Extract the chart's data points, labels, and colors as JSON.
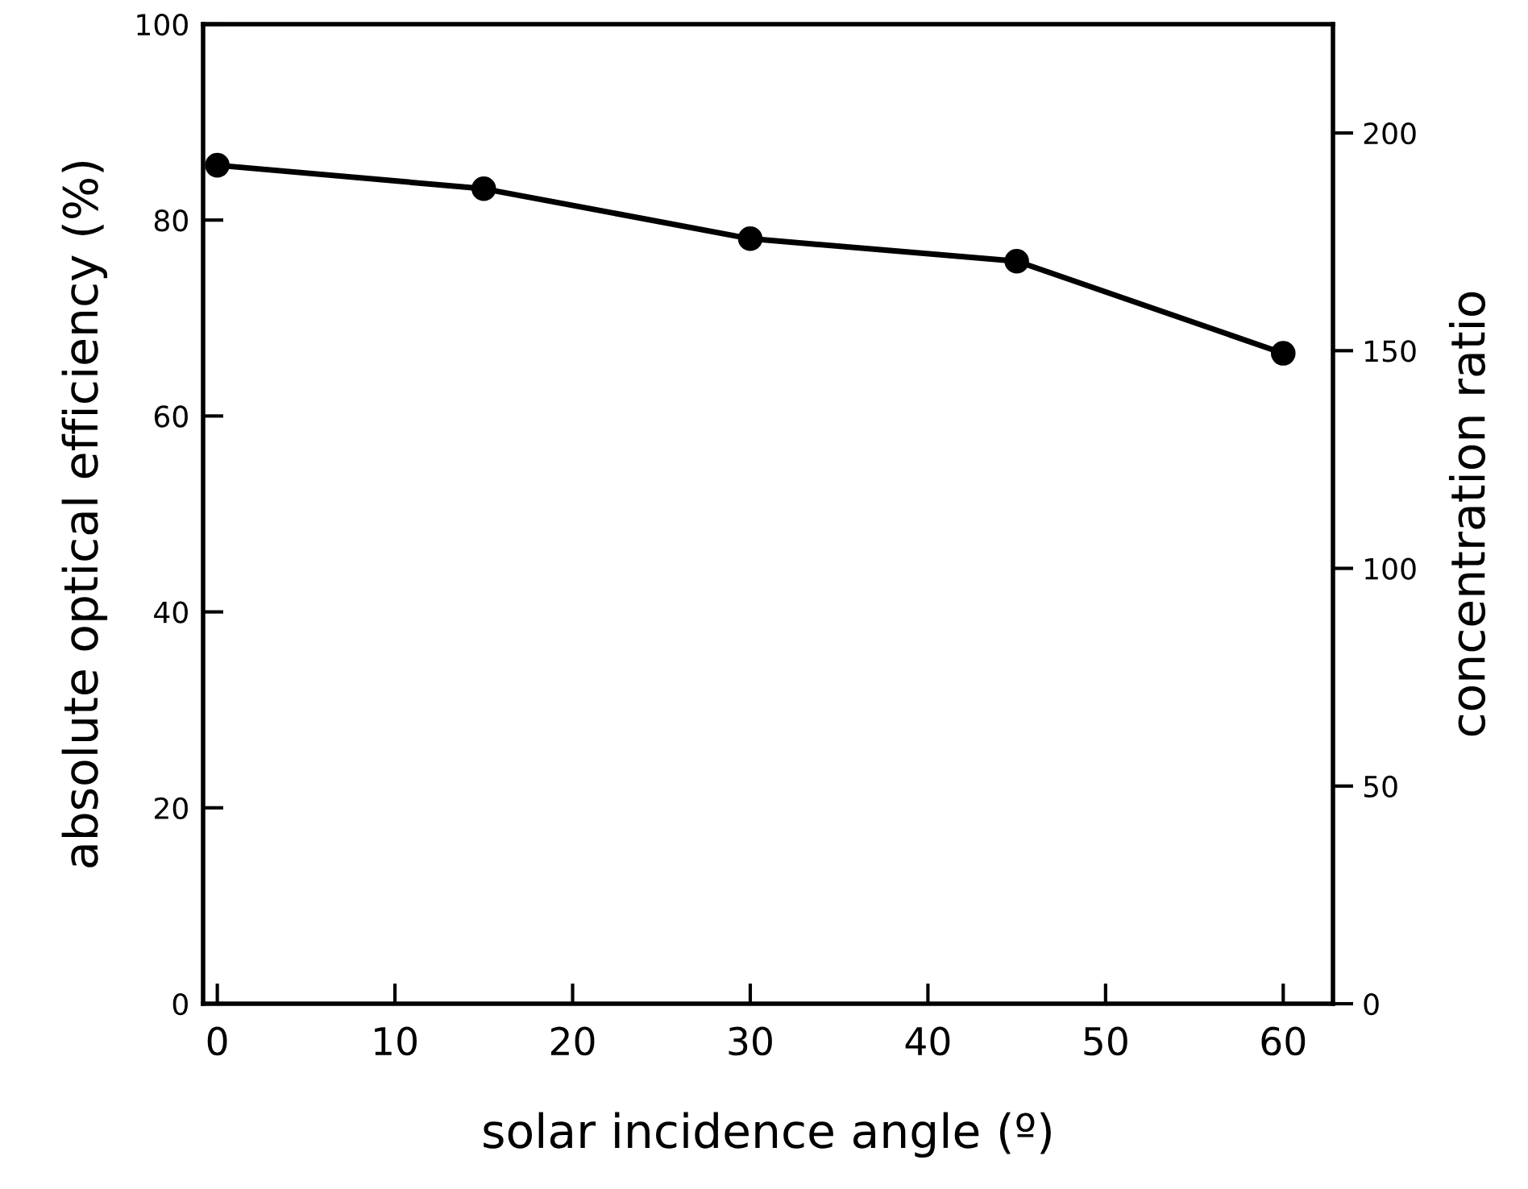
{
  "chart_data": {
    "type": "line",
    "xlabel": "solar incidence angle (º)",
    "ylabel": "absolute optical efficiency (%)",
    "y2label": "concentration ratio",
    "x": [
      0,
      15,
      30,
      45,
      60
    ],
    "series": [
      {
        "color": "#000000",
        "values": [
          85.6,
          83.2,
          78.1,
          75.8,
          66.4
        ]
      }
    ],
    "xlim": [
      -0.8,
      62.8
    ],
    "xticks": [
      0,
      10,
      20,
      30,
      40,
      50,
      60
    ],
    "ylim": [
      0,
      100
    ],
    "yticks": [
      0,
      20,
      40,
      60,
      80,
      100
    ],
    "y2lim": [
      0,
      225
    ],
    "y2ticks": [
      0,
      50,
      100,
      150,
      200
    ],
    "marker": "circle",
    "line_style": "solid",
    "grid": false,
    "legend": false
  }
}
